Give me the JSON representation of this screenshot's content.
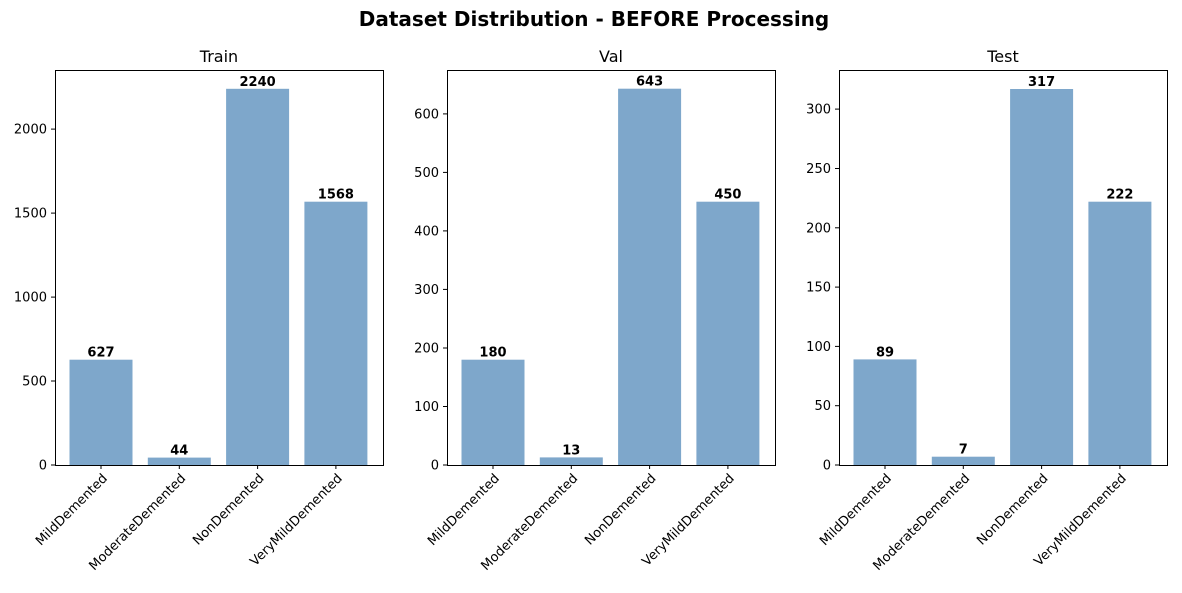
{
  "figure": {
    "title": "Dataset Distribution - BEFORE Processing",
    "bar_color": "#7ea7cb"
  },
  "chart_data": [
    {
      "type": "bar",
      "title": "Train",
      "categories": [
        "MildDemented",
        "ModerateDemented",
        "NonDemented",
        "VeryMildDemented"
      ],
      "values": [
        627,
        44,
        2240,
        1568
      ],
      "yticks": [
        0,
        500,
        1000,
        1500,
        2000
      ],
      "ylim": [
        0,
        2352
      ],
      "xlabel": "",
      "ylabel": "",
      "grid": false
    },
    {
      "type": "bar",
      "title": "Val",
      "categories": [
        "MildDemented",
        "ModerateDemented",
        "NonDemented",
        "VeryMildDemented"
      ],
      "values": [
        180,
        13,
        643,
        450
      ],
      "yticks": [
        0,
        100,
        200,
        300,
        400,
        500,
        600
      ],
      "ylim": [
        0,
        675
      ],
      "xlabel": "",
      "ylabel": "",
      "grid": false
    },
    {
      "type": "bar",
      "title": "Test",
      "categories": [
        "MildDemented",
        "ModerateDemented",
        "NonDemented",
        "VeryMildDemented"
      ],
      "values": [
        89,
        7,
        317,
        222
      ],
      "yticks": [
        0,
        50,
        100,
        150,
        200,
        250,
        300
      ],
      "ylim": [
        0,
        333
      ],
      "xlabel": "",
      "ylabel": "",
      "grid": false
    }
  ]
}
